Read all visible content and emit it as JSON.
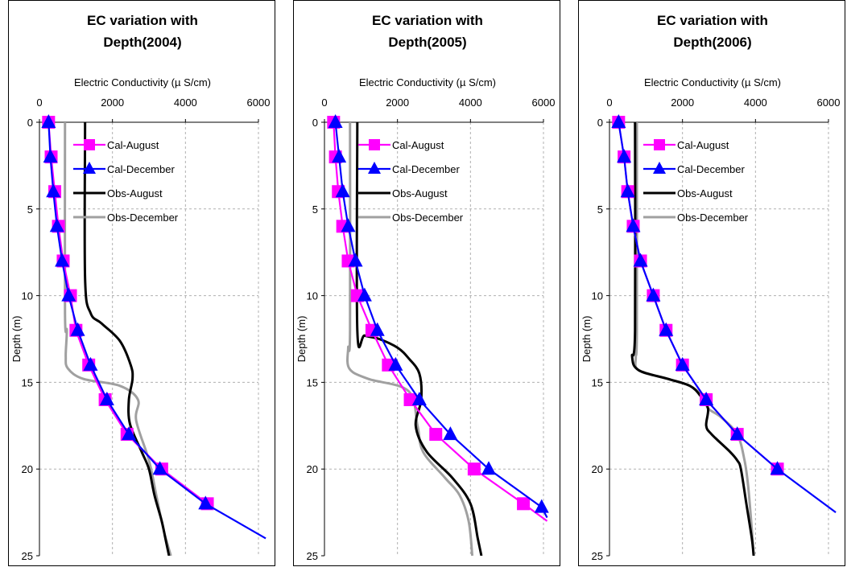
{
  "colors": {
    "cal_august": "#ff00ff",
    "cal_december": "#0000ff",
    "obs_august": "#000000",
    "obs_december": "#a0a0a0",
    "grid": "#b0b0b0"
  },
  "chart_data": [
    {
      "type": "line",
      "title": [
        "EC variation with",
        "Depth(2004)"
      ],
      "xlabel": "Electric Conductivity (µ S/cm)",
      "ylabel": "Depth (m)",
      "xlim": [
        0,
        6000
      ],
      "ylim": [
        0,
        25
      ],
      "x_ticks": [
        "0",
        "2000",
        "4000",
        "6000"
      ],
      "y_ticks": [
        "0",
        "5",
        "10",
        "15",
        "20",
        "25"
      ],
      "x_axis_position": "top",
      "y_inverted": true,
      "grid": true,
      "legend": [
        "Cal-August",
        "Cal-December",
        "Obs-August",
        "Obs-December"
      ],
      "series": [
        {
          "name": "Cal-August",
          "marker": "square",
          "points": [
            [
              250,
              0
            ],
            [
              320,
              2
            ],
            [
              420,
              4
            ],
            [
              520,
              6
            ],
            [
              650,
              8
            ],
            [
              850,
              10
            ],
            [
              1000,
              12
            ],
            [
              1350,
              14
            ],
            [
              1800,
              16
            ],
            [
              2400,
              18
            ],
            [
              3350,
              20
            ],
            [
              4600,
              22
            ]
          ]
        },
        {
          "name": "Cal-December",
          "marker": "triangle",
          "points": [
            [
              250,
              0
            ],
            [
              300,
              2
            ],
            [
              380,
              4
            ],
            [
              480,
              6
            ],
            [
              620,
              8
            ],
            [
              800,
              10
            ],
            [
              1050,
              12
            ],
            [
              1400,
              14
            ],
            [
              1850,
              16
            ],
            [
              2450,
              18
            ],
            [
              3300,
              20
            ],
            [
              4550,
              22
            ],
            [
              6200,
              24
            ]
          ]
        },
        {
          "name": "Obs-August",
          "marker": "none",
          "points": [
            [
              1250,
              0
            ],
            [
              1250,
              9
            ],
            [
              1400,
              11
            ],
            [
              1700,
              11.6
            ],
            [
              2200,
              12.6
            ],
            [
              2500,
              14
            ],
            [
              2550,
              14.8
            ],
            [
              2450,
              16
            ],
            [
              2480,
              17.4
            ],
            [
              2800,
              19
            ],
            [
              3000,
              20
            ],
            [
              3150,
              21.5
            ],
            [
              3350,
              23
            ],
            [
              3450,
              24
            ],
            [
              3550,
              25
            ]
          ]
        },
        {
          "name": "Obs-December",
          "marker": "none",
          "points": [
            [
              700,
              0
            ],
            [
              700,
              11
            ],
            [
              750,
              12
            ],
            [
              720,
              13.5
            ],
            [
              780,
              14.2
            ],
            [
              1200,
              14.8
            ],
            [
              2200,
              15.2
            ],
            [
              2700,
              16
            ],
            [
              2650,
              17.2
            ],
            [
              3000,
              19.5
            ],
            [
              3200,
              21.5
            ],
            [
              3400,
              23.5
            ],
            [
              3600,
              25
            ]
          ]
        }
      ]
    },
    {
      "type": "line",
      "title": [
        "EC variation with",
        "Depth(2005)"
      ],
      "xlabel": "Electric Conductivity (µ S/cm)",
      "ylabel": "Depth (m)",
      "xlim": [
        0,
        6000
      ],
      "ylim": [
        0,
        25
      ],
      "x_ticks": [
        "0",
        "2000",
        "4000",
        "6000"
      ],
      "y_ticks": [
        "0",
        "5",
        "10",
        "15",
        "20",
        "25"
      ],
      "x_axis_position": "top",
      "y_inverted": true,
      "grid": true,
      "legend": [
        "Cal-August",
        "Cal-December",
        "Obs-August",
        "Obs-December"
      ],
      "series": [
        {
          "name": "Cal-August",
          "marker": "square",
          "points": [
            [
              250,
              0
            ],
            [
              300,
              2
            ],
            [
              380,
              4
            ],
            [
              500,
              6
            ],
            [
              650,
              8
            ],
            [
              900,
              10
            ],
            [
              1300,
              12
            ],
            [
              1750,
              14
            ],
            [
              2350,
              16
            ],
            [
              3050,
              18
            ],
            [
              4100,
              20
            ],
            [
              5450,
              22
            ],
            [
              6100,
              23
            ]
          ]
        },
        {
          "name": "Cal-December",
          "marker": "triangle",
          "points": [
            [
              300,
              0
            ],
            [
              400,
              2
            ],
            [
              500,
              4
            ],
            [
              650,
              6
            ],
            [
              850,
              8
            ],
            [
              1100,
              10
            ],
            [
              1450,
              12
            ],
            [
              1950,
              14
            ],
            [
              2600,
              16
            ],
            [
              3450,
              18
            ],
            [
              4500,
              20
            ],
            [
              5950,
              22.2
            ],
            [
              6100,
              22.8
            ]
          ]
        },
        {
          "name": "Obs-August",
          "marker": "none",
          "points": [
            [
              900,
              0
            ],
            [
              900,
              12
            ],
            [
              1100,
              12.3
            ],
            [
              1500,
              12.5
            ],
            [
              2000,
              13
            ],
            [
              2300,
              13.6
            ],
            [
              2600,
              14.5
            ],
            [
              2650,
              16
            ],
            [
              2500,
              17.5
            ],
            [
              2800,
              19
            ],
            [
              3500,
              20.5
            ],
            [
              4000,
              22
            ],
            [
              4200,
              24
            ],
            [
              4300,
              25
            ]
          ]
        },
        {
          "name": "Obs-December",
          "marker": "none",
          "points": [
            [
              700,
              0
            ],
            [
              700,
              12
            ],
            [
              650,
              13
            ],
            [
              680,
              14.2
            ],
            [
              1200,
              14.8
            ],
            [
              2300,
              15.5
            ],
            [
              2550,
              17.5
            ],
            [
              2700,
              19
            ],
            [
              3300,
              20.5
            ],
            [
              3700,
              21.5
            ],
            [
              3950,
              23
            ],
            [
              4050,
              25
            ]
          ]
        }
      ]
    },
    {
      "type": "line",
      "title": [
        "EC variation with",
        "Depth(2006)"
      ],
      "xlabel": "Electric Conductivity (µ S/cm)",
      "ylabel": "Depth (m)",
      "xlim": [
        0,
        6000
      ],
      "ylim": [
        0,
        25
      ],
      "x_ticks": [
        "0",
        "2000",
        "4000",
        "6000"
      ],
      "y_ticks": [
        "0",
        "5",
        "10",
        "15",
        "20",
        "25"
      ],
      "x_axis_position": "top",
      "y_inverted": true,
      "grid": true,
      "legend": [
        "Cal-August",
        "Cal-December",
        "Obs-August",
        "Obs-December"
      ],
      "series": [
        {
          "name": "Cal-August",
          "marker": "square",
          "points": [
            [
              250,
              0
            ],
            [
              400,
              2
            ],
            [
              500,
              4
            ],
            [
              650,
              6
            ],
            [
              850,
              8
            ],
            [
              1200,
              10
            ],
            [
              1550,
              12
            ],
            [
              2000,
              14
            ],
            [
              2650,
              16
            ],
            [
              3500,
              18
            ],
            [
              4600,
              20
            ]
          ]
        },
        {
          "name": "Cal-December",
          "marker": "triangle",
          "points": [
            [
              250,
              0
            ],
            [
              400,
              2
            ],
            [
              500,
              4
            ],
            [
              650,
              6
            ],
            [
              850,
              8
            ],
            [
              1200,
              10
            ],
            [
              1550,
              12
            ],
            [
              2000,
              14
            ],
            [
              2650,
              16
            ],
            [
              3500,
              18
            ],
            [
              4600,
              20
            ],
            [
              6200,
              22.5
            ]
          ]
        },
        {
          "name": "Obs-August",
          "marker": "none",
          "points": [
            [
              700,
              0
            ],
            [
              700,
              12
            ],
            [
              620,
              13.5
            ],
            [
              800,
              14.3
            ],
            [
              1600,
              14.8
            ],
            [
              2200,
              15.2
            ],
            [
              2500,
              15.8
            ],
            [
              2700,
              16.5
            ],
            [
              2650,
              17.5
            ],
            [
              2800,
              18
            ],
            [
              3300,
              19
            ],
            [
              3500,
              19.5
            ],
            [
              3600,
              20
            ],
            [
              3750,
              22
            ],
            [
              3900,
              24
            ],
            [
              3950,
              25
            ]
          ]
        },
        {
          "name": "Obs-December",
          "marker": "none",
          "points": [
            [
              750,
              0
            ],
            [
              750,
              12
            ],
            [
              720,
              13.5
            ],
            [
              800,
              14.3
            ],
            [
              1600,
              14.8
            ],
            [
              2200,
              15.2
            ],
            [
              2550,
              15.8
            ],
            [
              2700,
              16.5
            ],
            [
              3050,
              17
            ],
            [
              3500,
              18
            ],
            [
              3700,
              19.5
            ],
            [
              3800,
              21
            ],
            [
              3900,
              23.5
            ],
            [
              3950,
              25
            ]
          ]
        }
      ]
    }
  ]
}
